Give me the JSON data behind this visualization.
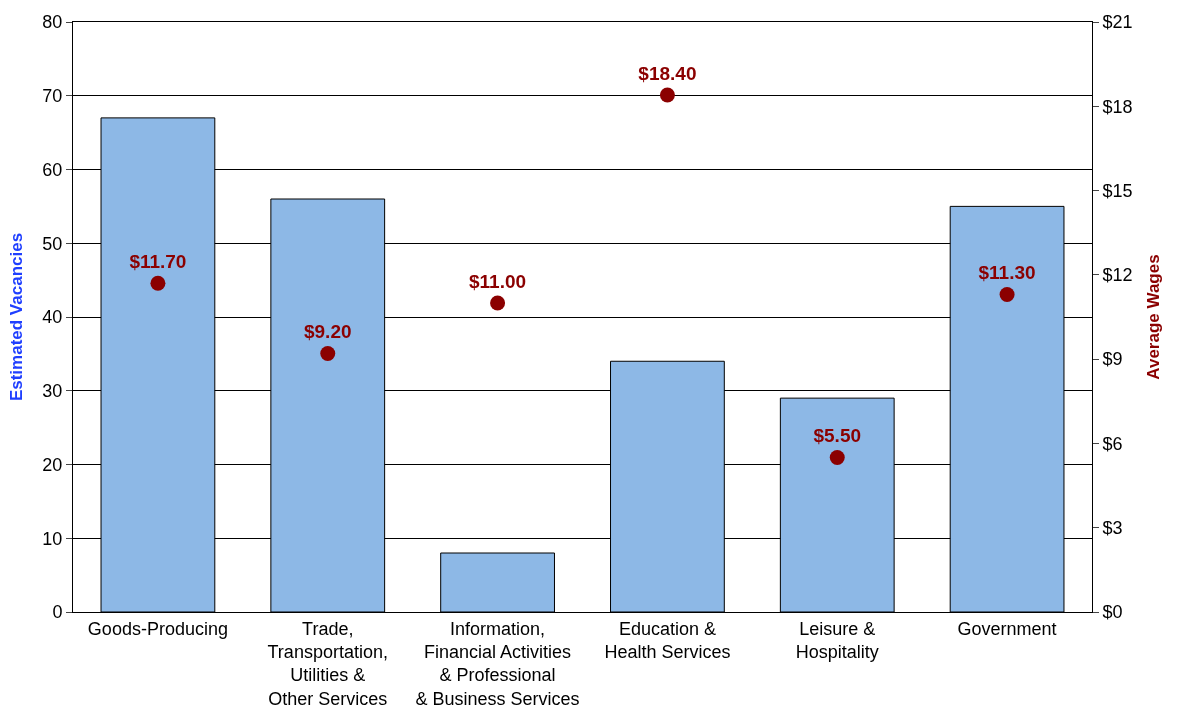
{
  "chart_data": {
    "type": "bar",
    "categories": [
      "Goods-Producing",
      "Trade,\nTransportation,\nUtilities &\nOther Services",
      "Information,\nFinancial Activities\n& Professional\n& Business Services",
      "Education &\nHealth Services",
      "Leisure &\nHospitality",
      "Government"
    ],
    "series": [
      {
        "color": "#8db8e6",
        "values": [
          67,
          56,
          8,
          34,
          29,
          55
        ]
      },
      {
        "type": "scatter",
        "axis": "y2",
        "color": "#8b0000",
        "values": [
          11.7,
          9.2,
          11.0,
          18.4,
          5.5,
          11.3
        ],
        "value_labels": [
          "$11.70",
          "$9.20",
          "$11.00",
          "$18.40",
          "$5.50",
          "$11.30"
        ]
      }
    ],
    "ylabel": "Estimated Vacancies",
    "y2label": "Average Wages",
    "ylim": [
      0,
      80
    ],
    "yticks": [
      0,
      10,
      20,
      30,
      40,
      50,
      60,
      70,
      80
    ],
    "y2lim": [
      0,
      21
    ],
    "y2ticks": [
      {
        "value": 0,
        "label": "$0"
      },
      {
        "value": 3,
        "label": "$3"
      },
      {
        "value": 6,
        "label": "$6"
      },
      {
        "value": 9,
        "label": "$9"
      },
      {
        "value": 12,
        "label": "$12"
      },
      {
        "value": 15,
        "label": "$15"
      },
      {
        "value": 18,
        "label": "$18"
      },
      {
        "value": 21,
        "label": "$21"
      }
    ],
    "grid": "y",
    "marker": "circle"
  }
}
